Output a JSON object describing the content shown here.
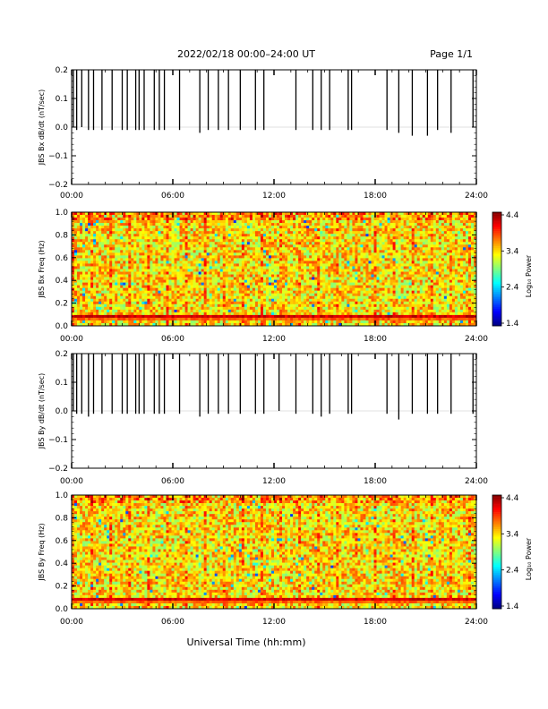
{
  "header": {
    "title": "2022/02/18  00:00–24:00 UT",
    "page": "Page 1/1"
  },
  "xaxis": {
    "label": "Universal Time (hh:mm)",
    "ticks": [
      "00:00",
      "06:00",
      "12:00",
      "18:00",
      "24:00"
    ],
    "range_hours": [
      0,
      24
    ]
  },
  "colors": {
    "trace": "#000000",
    "spectrogram_base": "#33cc33"
  },
  "colorbar": {
    "label": "Log₁₀ Power",
    "ticks": [
      "4.4",
      "3.4",
      "2.4",
      "1.4"
    ],
    "range": [
      1.4,
      4.4
    ]
  },
  "chart_data": [
    {
      "type": "line",
      "ylabel": "JBS Bx dB/dt (nT/sec)",
      "ylim": [
        -0.2,
        0.2
      ],
      "yticks": [
        "0.2",
        "0.1",
        "0.0",
        "−0.1",
        "−0.2"
      ],
      "spikes": [
        {
          "t": 0.1,
          "lo": 0.0,
          "hi": 0.2
        },
        {
          "t": 0.3,
          "lo": -0.01,
          "hi": 0.2
        },
        {
          "t": 0.6,
          "lo": 0.0,
          "hi": 0.2
        },
        {
          "t": 1.0,
          "lo": -0.01,
          "hi": 0.2
        },
        {
          "t": 1.3,
          "lo": -0.01,
          "hi": 0.2
        },
        {
          "t": 1.8,
          "lo": -0.01,
          "hi": 0.2
        },
        {
          "t": 2.4,
          "lo": -0.01,
          "hi": 0.2
        },
        {
          "t": 3.0,
          "lo": -0.01,
          "hi": 0.2
        },
        {
          "t": 3.3,
          "lo": -0.01,
          "hi": 0.2
        },
        {
          "t": 3.8,
          "lo": -0.01,
          "hi": 0.2
        },
        {
          "t": 4.0,
          "lo": -0.01,
          "hi": 0.2
        },
        {
          "t": 4.3,
          "lo": -0.01,
          "hi": 0.2
        },
        {
          "t": 4.9,
          "lo": -0.01,
          "hi": 0.2
        },
        {
          "t": 5.2,
          "lo": -0.01,
          "hi": 0.2
        },
        {
          "t": 5.5,
          "lo": -0.01,
          "hi": 0.2
        },
        {
          "t": 6.4,
          "lo": -0.01,
          "hi": 0.2
        },
        {
          "t": 7.6,
          "lo": -0.02,
          "hi": 0.2
        },
        {
          "t": 8.1,
          "lo": -0.01,
          "hi": 0.2
        },
        {
          "t": 8.7,
          "lo": -0.01,
          "hi": 0.2
        },
        {
          "t": 9.3,
          "lo": -0.01,
          "hi": 0.2
        },
        {
          "t": 10.0,
          "lo": -0.01,
          "hi": 0.2
        },
        {
          "t": 10.9,
          "lo": -0.01,
          "hi": 0.2
        },
        {
          "t": 11.4,
          "lo": -0.01,
          "hi": 0.2
        },
        {
          "t": 13.3,
          "lo": -0.01,
          "hi": 0.2
        },
        {
          "t": 14.3,
          "lo": -0.01,
          "hi": 0.2
        },
        {
          "t": 14.8,
          "lo": -0.01,
          "hi": 0.2
        },
        {
          "t": 15.3,
          "lo": -0.01,
          "hi": 0.2
        },
        {
          "t": 16.4,
          "lo": -0.01,
          "hi": 0.2
        },
        {
          "t": 16.6,
          "lo": -0.01,
          "hi": 0.2
        },
        {
          "t": 18.7,
          "lo": -0.01,
          "hi": 0.2
        },
        {
          "t": 19.4,
          "lo": -0.02,
          "hi": 0.2
        },
        {
          "t": 20.2,
          "lo": -0.03,
          "hi": 0.2
        },
        {
          "t": 21.1,
          "lo": -0.03,
          "hi": 0.2
        },
        {
          "t": 21.7,
          "lo": -0.01,
          "hi": 0.2
        },
        {
          "t": 22.5,
          "lo": -0.02,
          "hi": 0.2
        },
        {
          "t": 23.8,
          "lo": 0.0,
          "hi": 0.2
        }
      ]
    },
    {
      "type": "heatmap",
      "ylabel": "JBS Bx Freq (Hz)",
      "ylim": [
        0.0,
        1.0
      ],
      "yticks": [
        "1.0",
        "0.8",
        "0.6",
        "0.4",
        "0.2",
        "0.0"
      ],
      "power_range": [
        1.4,
        4.4
      ],
      "bands": [
        {
          "freq": 0.08,
          "power": 4.3
        },
        {
          "freq": 0.06,
          "power": 3.9
        }
      ]
    },
    {
      "type": "line",
      "ylabel": "JBS By dB/dt (nT/sec)",
      "ylim": [
        -0.2,
        0.2
      ],
      "yticks": [
        "0.2",
        "0.1",
        "0.0",
        "−0.1",
        "−0.2"
      ],
      "spikes": [
        {
          "t": 0.1,
          "lo": 0.0,
          "hi": 0.2
        },
        {
          "t": 0.3,
          "lo": -0.01,
          "hi": 0.2
        },
        {
          "t": 0.6,
          "lo": -0.01,
          "hi": 0.2
        },
        {
          "t": 1.0,
          "lo": -0.02,
          "hi": 0.2
        },
        {
          "t": 1.3,
          "lo": -0.01,
          "hi": 0.2
        },
        {
          "t": 1.8,
          "lo": -0.01,
          "hi": 0.2
        },
        {
          "t": 2.4,
          "lo": -0.01,
          "hi": 0.2
        },
        {
          "t": 3.0,
          "lo": -0.01,
          "hi": 0.2
        },
        {
          "t": 3.3,
          "lo": -0.01,
          "hi": 0.2
        },
        {
          "t": 3.8,
          "lo": -0.01,
          "hi": 0.2
        },
        {
          "t": 4.0,
          "lo": -0.01,
          "hi": 0.2
        },
        {
          "t": 4.3,
          "lo": -0.01,
          "hi": 0.2
        },
        {
          "t": 4.9,
          "lo": -0.01,
          "hi": 0.2
        },
        {
          "t": 5.2,
          "lo": -0.01,
          "hi": 0.2
        },
        {
          "t": 5.5,
          "lo": -0.01,
          "hi": 0.2
        },
        {
          "t": 6.4,
          "lo": -0.01,
          "hi": 0.2
        },
        {
          "t": 7.6,
          "lo": -0.02,
          "hi": 0.2
        },
        {
          "t": 8.1,
          "lo": -0.01,
          "hi": 0.2
        },
        {
          "t": 8.7,
          "lo": -0.01,
          "hi": 0.2
        },
        {
          "t": 9.3,
          "lo": -0.01,
          "hi": 0.2
        },
        {
          "t": 10.0,
          "lo": -0.01,
          "hi": 0.2
        },
        {
          "t": 10.9,
          "lo": -0.01,
          "hi": 0.2
        },
        {
          "t": 11.4,
          "lo": -0.01,
          "hi": 0.2
        },
        {
          "t": 12.3,
          "lo": 0.0,
          "hi": 0.2
        },
        {
          "t": 13.3,
          "lo": -0.01,
          "hi": 0.2
        },
        {
          "t": 14.3,
          "lo": -0.01,
          "hi": 0.2
        },
        {
          "t": 14.8,
          "lo": -0.02,
          "hi": 0.2
        },
        {
          "t": 15.3,
          "lo": -0.01,
          "hi": 0.2
        },
        {
          "t": 16.4,
          "lo": -0.01,
          "hi": 0.2
        },
        {
          "t": 16.6,
          "lo": -0.01,
          "hi": 0.2
        },
        {
          "t": 18.7,
          "lo": -0.01,
          "hi": 0.2
        },
        {
          "t": 19.4,
          "lo": -0.03,
          "hi": 0.2
        },
        {
          "t": 20.2,
          "lo": -0.01,
          "hi": 0.2
        },
        {
          "t": 21.1,
          "lo": -0.01,
          "hi": 0.2
        },
        {
          "t": 21.7,
          "lo": -0.01,
          "hi": 0.2
        },
        {
          "t": 22.5,
          "lo": -0.01,
          "hi": 0.2
        },
        {
          "t": 23.8,
          "lo": -0.01,
          "hi": 0.2
        }
      ]
    },
    {
      "type": "heatmap",
      "ylabel": "JBS By Freq (Hz)",
      "ylim": [
        0.0,
        1.0
      ],
      "yticks": [
        "1.0",
        "0.8",
        "0.6",
        "0.4",
        "0.2",
        "0.0"
      ],
      "power_range": [
        1.4,
        4.4
      ],
      "bands": [
        {
          "freq": 0.08,
          "power": 4.3
        },
        {
          "freq": 0.06,
          "power": 3.9
        }
      ]
    }
  ]
}
